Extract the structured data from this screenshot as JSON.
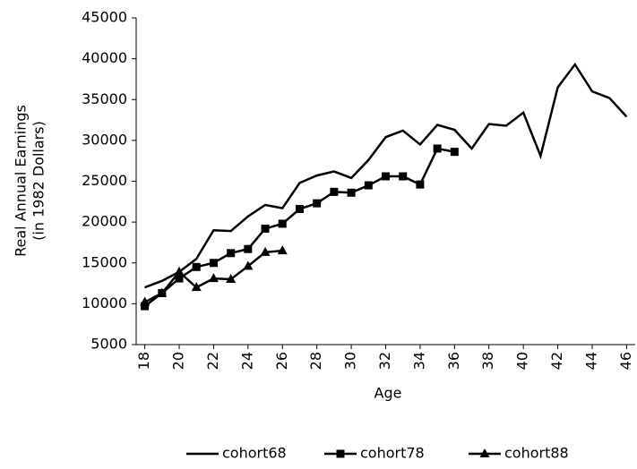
{
  "chart_data": {
    "type": "line",
    "x_label": "Age",
    "y_label": [
      "Real Annual Earnings",
      "(in 1982 Dollars)"
    ],
    "x": [
      18,
      19,
      20,
      21,
      22,
      23,
      24,
      25,
      26,
      27,
      28,
      29,
      30,
      31,
      32,
      33,
      34,
      35,
      36,
      37,
      38,
      39,
      40,
      41,
      42,
      43,
      44,
      45,
      46
    ],
    "xlim": [
      17.5,
      46.5
    ],
    "xticks": [
      18,
      20,
      22,
      24,
      26,
      28,
      30,
      32,
      34,
      36,
      38,
      40,
      42,
      44,
      46
    ],
    "ylim": [
      5000,
      45000
    ],
    "yticks": [
      5000,
      10000,
      15000,
      20000,
      25000,
      30000,
      35000,
      40000,
      45000
    ],
    "grid": false,
    "legend": "bottom",
    "series": [
      {
        "name": "cohort68",
        "color": "#000000",
        "marker": "none",
        "values": [
          12000,
          12800,
          13900,
          15500,
          19000,
          18900,
          20700,
          22100,
          21700,
          24800,
          25700,
          26200,
          25400,
          27600,
          30400,
          31200,
          29500,
          31900,
          31300,
          29000,
          32000,
          31800,
          33400,
          28100,
          36500,
          39300,
          36000,
          35200,
          32900
        ]
      },
      {
        "name": "cohort78",
        "color": "#000000",
        "marker": "square",
        "values": [
          9700,
          11300,
          13100,
          14500,
          15000,
          16200,
          16700,
          19200,
          19800,
          21600,
          22300,
          23700,
          23600,
          24500,
          25600,
          25600,
          24600,
          29000,
          28600,
          null,
          null,
          null,
          null,
          null,
          null,
          null,
          null,
          null,
          null
        ]
      },
      {
        "name": "cohort88",
        "color": "#000000",
        "marker": "triangle",
        "values": [
          10200,
          11300,
          13900,
          12000,
          13100,
          13000,
          14600,
          16300,
          16500,
          null,
          null,
          null,
          null,
          null,
          null,
          null,
          null,
          null,
          null,
          null,
          null,
          null,
          null,
          null,
          null,
          null,
          null,
          null,
          null
        ]
      }
    ]
  }
}
